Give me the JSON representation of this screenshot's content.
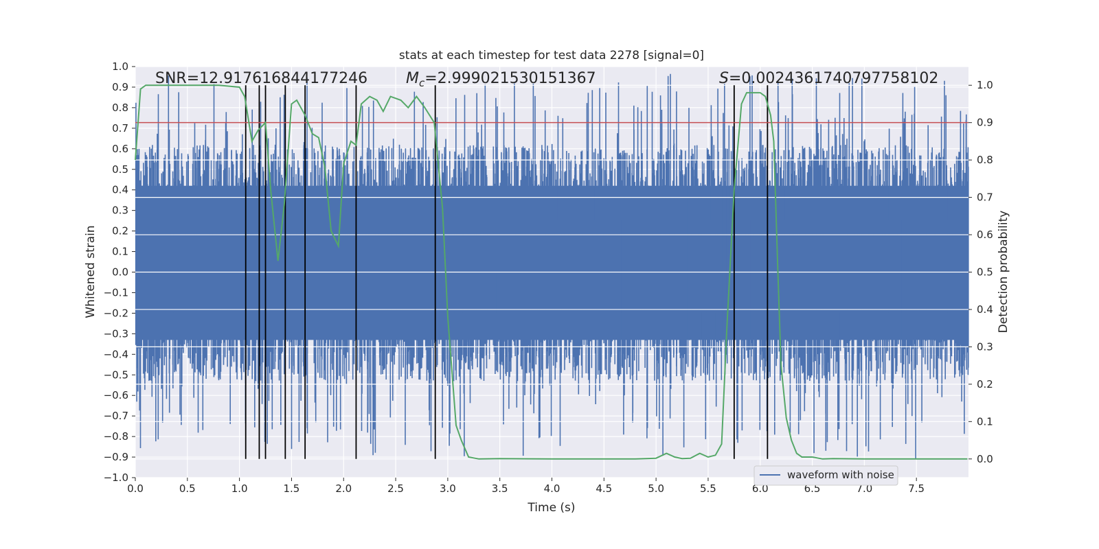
{
  "chart_data": {
    "type": "line",
    "title": "stats at each timestep for test data 2278 [signal=0]",
    "xlabel": "Time (s)",
    "ylabel_left": "Whitened strain",
    "ylabel_right": "Detection probability",
    "xlim": [
      0.0,
      8.0
    ],
    "ylim_left": [
      -1.0,
      1.0
    ],
    "ylim_right": [
      -0.05,
      1.05
    ],
    "x_ticks": [
      "0.0",
      "0.5",
      "1.0",
      "1.5",
      "2.0",
      "2.5",
      "3.0",
      "3.5",
      "4.0",
      "4.5",
      "5.0",
      "5.5",
      "6.0",
      "6.5",
      "7.0",
      "7.5"
    ],
    "x_tick_values": [
      0.0,
      0.5,
      1.0,
      1.5,
      2.0,
      2.5,
      3.0,
      3.5,
      4.0,
      4.5,
      5.0,
      5.5,
      6.0,
      6.5,
      7.0,
      7.5
    ],
    "y_left_ticks": [
      "1.0",
      "0.9",
      "0.8",
      "0.7",
      "0.6",
      "0.5",
      "0.4",
      "0.3",
      "0.2",
      "0.1",
      "0.0",
      "−0.1",
      "−0.2",
      "−0.3",
      "−0.4",
      "−0.5",
      "−0.6",
      "−0.7",
      "−0.8",
      "−0.9",
      "−1.0"
    ],
    "y_left_tick_values": [
      1.0,
      0.9,
      0.8,
      0.7,
      0.6,
      0.5,
      0.4,
      0.3,
      0.2,
      0.1,
      0.0,
      -0.1,
      -0.2,
      -0.3,
      -0.4,
      -0.5,
      -0.6,
      -0.7,
      -0.8,
      -0.9,
      -1.0
    ],
    "y_right_ticks": [
      "1.0",
      "0.9",
      "0.8",
      "0.7",
      "0.6",
      "0.5",
      "0.4",
      "0.3",
      "0.2",
      "0.1",
      "0.0"
    ],
    "y_right_tick_values": [
      1.0,
      0.9,
      0.8,
      0.7,
      0.6,
      0.5,
      0.4,
      0.3,
      0.2,
      0.1,
      0.0
    ],
    "annotations": {
      "snr": "SNR=12.917616844177246",
      "mc_symbol": "M",
      "mc_sub": "c",
      "mc_value": "=2.999021530151367",
      "s_symbol": "S",
      "s_value": "=0.0024361740797758102"
    },
    "threshold": {
      "value": 0.9,
      "color": "#c44e52"
    },
    "vertical_lines_x": [
      1.06,
      1.19,
      1.25,
      1.44,
      1.63,
      2.12,
      2.88,
      5.75,
      6.07
    ],
    "waveform": {
      "name": "waveform with noise",
      "color": "#4c72b0",
      "envelope_top": 0.42,
      "envelope_bottom": -0.33,
      "spike_density_per_s": 45,
      "max_up": 0.97,
      "max_down": -0.91
    },
    "probability": {
      "color": "#55a868",
      "x": [
        0.0,
        0.05,
        0.1,
        0.2,
        0.3,
        0.5,
        0.8,
        1.0,
        1.05,
        1.12,
        1.18,
        1.25,
        1.3,
        1.37,
        1.43,
        1.5,
        1.55,
        1.63,
        1.7,
        1.76,
        1.82,
        1.88,
        1.95,
        2.0,
        2.07,
        2.12,
        2.17,
        2.25,
        2.32,
        2.38,
        2.45,
        2.55,
        2.62,
        2.7,
        2.78,
        2.87,
        2.95,
        3.0,
        3.08,
        3.13,
        3.2,
        3.3,
        3.5,
        4.0,
        4.5,
        4.8,
        5.0,
        5.1,
        5.18,
        5.25,
        5.33,
        5.42,
        5.5,
        5.57,
        5.63,
        5.68,
        5.75,
        5.82,
        5.87,
        5.93,
        6.0,
        6.05,
        6.1,
        6.13,
        6.17,
        6.2,
        6.25,
        6.3,
        6.35,
        6.4,
        6.5,
        6.6,
        6.7,
        7.0,
        7.5,
        7.8,
        7.99
      ],
      "y": [
        0.8,
        0.99,
        1.0,
        1.0,
        1.0,
        1.0,
        1.0,
        0.995,
        0.97,
        0.85,
        0.88,
        0.9,
        0.72,
        0.53,
        0.68,
        0.95,
        0.96,
        0.92,
        0.87,
        0.86,
        0.78,
        0.61,
        0.57,
        0.79,
        0.85,
        0.84,
        0.95,
        0.97,
        0.96,
        0.93,
        0.97,
        0.96,
        0.94,
        0.97,
        0.94,
        0.9,
        0.67,
        0.38,
        0.09,
        0.05,
        0.005,
        0.0,
        0.001,
        0.0,
        0.0,
        0.0,
        0.002,
        0.015,
        0.005,
        0.001,
        0.002,
        0.015,
        0.005,
        0.01,
        0.04,
        0.35,
        0.72,
        0.95,
        0.98,
        0.98,
        0.98,
        0.97,
        0.92,
        0.85,
        0.5,
        0.25,
        0.11,
        0.05,
        0.015,
        0.005,
        0.005,
        0.0,
        0.001,
        0.0,
        0.0,
        0.0,
        0.0
      ]
    }
  }
}
